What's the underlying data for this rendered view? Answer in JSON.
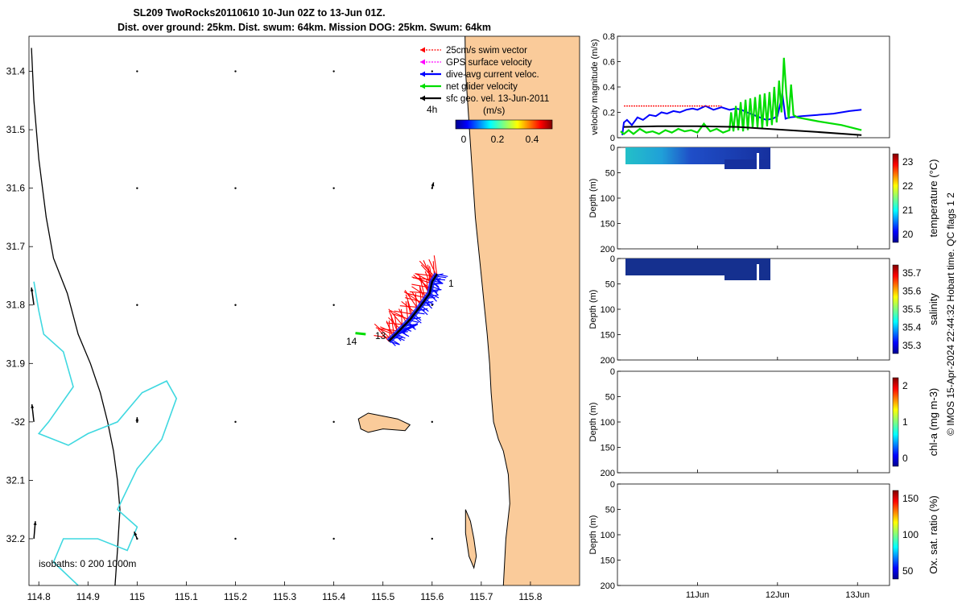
{
  "title": {
    "line1": "SL209 TwoRocks20110610 10-Jun 02Z to 13-Jun 01Z.",
    "line2": "Dist. over ground: 25km. Dist. swum: 64km. Mission DOG: 25km. Swum: 64km"
  },
  "map": {
    "type": "map",
    "xlim": [
      114.78,
      115.9
    ],
    "ylim": [
      -32.28,
      -31.34
    ],
    "xticks": [
      {
        "v": 114.8,
        "label": "114.8"
      },
      {
        "v": 114.9,
        "label": "114.9"
      },
      {
        "v": 115.0,
        "label": "115"
      },
      {
        "v": 115.1,
        "label": "115.1"
      },
      {
        "v": 115.2,
        "label": "115.2"
      },
      {
        "v": 115.3,
        "label": "115.3"
      },
      {
        "v": 115.4,
        "label": "115.4"
      },
      {
        "v": 115.5,
        "label": "115.5"
      },
      {
        "v": 115.6,
        "label": "115.6"
      },
      {
        "v": 115.7,
        "label": "115.7"
      },
      {
        "v": 115.8,
        "label": "115.8"
      }
    ],
    "yticks": [
      {
        "v": -31.4,
        "label": "31.4"
      },
      {
        "v": -31.5,
        "label": "31.5"
      },
      {
        "v": -31.6,
        "label": "31.6"
      },
      {
        "v": -31.7,
        "label": "31.7"
      },
      {
        "v": -31.8,
        "label": "31.8"
      },
      {
        "v": -31.9,
        "label": "31.9"
      },
      {
        "v": -32.0,
        "label": "-32"
      },
      {
        "v": -32.1,
        "label": "32.1"
      },
      {
        "v": -32.2,
        "label": "32.2"
      }
    ],
    "legend": [
      {
        "label": "25cm/s swim vector",
        "color": "#ff0000",
        "dashed": true
      },
      {
        "label": "GPS surface velocity",
        "color": "#ff00ff",
        "dashed": true
      },
      {
        "label": "dive-avg current veloc.",
        "color": "#0000ff",
        "dashed": false
      },
      {
        "label": "net glider velocity",
        "color": "#00dd00",
        "dashed": false
      },
      {
        "label": "sfc geo. vel. 13-Jun-2011",
        "color": "#000000",
        "dashed": false
      }
    ],
    "colorbar": {
      "label_left": "4h",
      "units": "(m/s)",
      "ticks": [
        "0",
        "0.2",
        "0.4"
      ]
    },
    "isobath_text": "isobaths: 0   200  1000m",
    "track_labels": [
      "1",
      "13",
      "14"
    ],
    "coastline": [
      [
        115.667,
        -31.34
      ],
      [
        115.668,
        -31.4
      ],
      [
        115.672,
        -31.45
      ],
      [
        115.676,
        -31.5
      ],
      [
        115.68,
        -31.55
      ],
      [
        115.684,
        -31.6
      ],
      [
        115.688,
        -31.65
      ],
      [
        115.694,
        -31.7
      ],
      [
        115.7,
        -31.75
      ],
      [
        115.706,
        -31.8
      ],
      [
        115.712,
        -31.85
      ],
      [
        115.717,
        -31.9
      ],
      [
        115.72,
        -31.95
      ],
      [
        115.725,
        -32.0
      ],
      [
        115.735,
        -32.03
      ],
      [
        115.745,
        -32.05
      ],
      [
        115.755,
        -32.09
      ],
      [
        115.758,
        -32.14
      ],
      [
        115.75,
        -32.2
      ],
      [
        115.745,
        -32.28
      ]
    ],
    "rottnest": [
      [
        115.45,
        -31.995
      ],
      [
        115.47,
        -31.985
      ],
      [
        115.5,
        -31.99
      ],
      [
        115.53,
        -31.995
      ],
      [
        115.555,
        -32.005
      ],
      [
        115.545,
        -32.015
      ],
      [
        115.5,
        -32.012
      ],
      [
        115.47,
        -32.018
      ],
      [
        115.455,
        -32.012
      ]
    ],
    "garden_island": [
      [
        115.668,
        -32.15
      ],
      [
        115.678,
        -32.17
      ],
      [
        115.685,
        -32.2
      ],
      [
        115.69,
        -32.23
      ],
      [
        115.685,
        -32.25
      ],
      [
        115.675,
        -32.23
      ],
      [
        115.668,
        -32.19
      ]
    ],
    "isobath_200": [
      [
        114.785,
        -31.36
      ],
      [
        114.79,
        -31.45
      ],
      [
        114.8,
        -31.55
      ],
      [
        114.815,
        -31.65
      ],
      [
        114.83,
        -31.72
      ],
      [
        114.858,
        -31.78
      ],
      [
        114.88,
        -31.85
      ],
      [
        114.905,
        -31.9
      ],
      [
        114.925,
        -31.95
      ],
      [
        114.94,
        -32.0
      ],
      [
        114.952,
        -32.05
      ],
      [
        114.96,
        -32.1
      ],
      [
        114.965,
        -32.15
      ],
      [
        114.96,
        -32.22
      ],
      [
        114.955,
        -32.28
      ]
    ],
    "isobath_1000": [
      [
        114.79,
        -31.76
      ],
      [
        114.8,
        -31.81
      ],
      [
        114.81,
        -31.85
      ],
      [
        114.85,
        -31.88
      ],
      [
        114.87,
        -31.94
      ],
      [
        114.82,
        -32.0
      ],
      [
        114.8,
        -32.02
      ],
      [
        114.86,
        -32.04
      ],
      [
        114.9,
        -32.02
      ],
      [
        114.96,
        -32.0
      ],
      [
        115.01,
        -31.95
      ],
      [
        115.06,
        -31.93
      ],
      [
        115.08,
        -31.96
      ],
      [
        115.05,
        -32.03
      ],
      [
        115.0,
        -32.08
      ],
      [
        114.96,
        -32.15
      ],
      [
        115.0,
        -32.18
      ],
      [
        114.98,
        -32.22
      ],
      [
        114.92,
        -32.2
      ],
      [
        114.85,
        -32.2
      ],
      [
        114.83,
        -32.24
      ],
      [
        114.88,
        -32.28
      ]
    ],
    "track": [
      [
        115.512,
        -31.862
      ],
      [
        115.53,
        -31.847
      ],
      [
        115.555,
        -31.825
      ],
      [
        115.578,
        -31.8
      ],
      [
        115.595,
        -31.78
      ],
      [
        115.6,
        -31.76
      ],
      [
        115.61,
        -31.747
      ]
    ],
    "net_velocity_segment": [
      [
        115.444,
        -31.848
      ],
      [
        115.465,
        -31.85
      ]
    ],
    "sfc_vectors": [
      {
        "x": 114.79,
        "y": -31.8,
        "dx": -0.005,
        "dy": 0.03
      },
      {
        "x": 114.79,
        "y": -32.0,
        "dx": -0.004,
        "dy": 0.03
      },
      {
        "x": 114.79,
        "y": -32.2,
        "dx": 0.003,
        "dy": 0.03
      },
      {
        "x": 115.0,
        "y": -32.2,
        "dx": -0.006,
        "dy": 0.012
      },
      {
        "x": 115.0,
        "y": -32.0,
        "dx": 0.0,
        "dy": 0.008
      },
      {
        "x": 115.6,
        "y": -31.6,
        "dx": 0.003,
        "dy": 0.01
      }
    ]
  },
  "panels": [
    {
      "name": "velocity-panel",
      "ylabel": "velocity magnitude (m/s)",
      "yticks": [
        "0.8",
        "0.6",
        "0.4",
        "0.2",
        "0"
      ],
      "chart_data": {
        "type": "line",
        "xlim": [
          10.0,
          13.4
        ],
        "ylim": [
          0,
          0.8
        ],
        "series": [
          {
            "name": "dive-avg current veloc.",
            "color": "#0000ff",
            "x": [
              10.06,
              10.08,
              10.12,
              10.18,
              10.25,
              10.32,
              10.4,
              10.48,
              10.55,
              10.62,
              10.7,
              10.78,
              10.86,
              10.94,
              11.0,
              11.1,
              11.2,
              11.3,
              11.4,
              11.48,
              11.55,
              11.62,
              11.7,
              11.78,
              11.86,
              11.94,
              12.0,
              12.04,
              12.06,
              12.08,
              12.1,
              12.15,
              12.3,
              12.5,
              12.7,
              12.9,
              13.05
            ],
            "y": [
              0.02,
              0.12,
              0.14,
              0.1,
              0.16,
              0.14,
              0.18,
              0.17,
              0.2,
              0.19,
              0.21,
              0.2,
              0.22,
              0.23,
              0.22,
              0.25,
              0.22,
              0.24,
              0.22,
              0.23,
              0.22,
              0.2,
              0.18,
              0.16,
              0.14,
              0.15,
              0.17,
              0.28,
              0.35,
              0.25,
              0.15,
              0.16,
              0.17,
              0.18,
              0.19,
              0.21,
              0.22
            ]
          },
          {
            "name": "net glider velocity",
            "color": "#00dd00",
            "x": [
              10.04,
              10.08,
              10.14,
              10.2,
              10.28,
              10.36,
              10.44,
              10.52,
              10.6,
              10.68,
              10.76,
              10.84,
              10.92,
              11.0,
              11.08,
              11.16,
              11.24,
              11.32,
              11.4,
              11.42,
              11.45,
              11.48,
              11.51,
              11.54,
              11.57,
              11.6,
              11.63,
              11.66,
              11.69,
              11.72,
              11.75,
              11.78,
              11.81,
              11.84,
              11.87,
              11.9,
              11.93,
              11.96,
              11.99,
              12.02,
              12.05,
              12.08,
              12.11,
              12.14,
              12.17,
              12.2,
              12.25,
              12.5,
              12.8,
              13.05
            ],
            "y": [
              0.05,
              0.03,
              0.06,
              0.03,
              0.07,
              0.04,
              0.05,
              0.03,
              0.06,
              0.04,
              0.07,
              0.05,
              0.06,
              0.04,
              0.11,
              0.05,
              0.07,
              0.04,
              0.06,
              0.2,
              0.05,
              0.25,
              0.06,
              0.28,
              0.05,
              0.3,
              0.06,
              0.31,
              0.08,
              0.32,
              0.08,
              0.34,
              0.07,
              0.35,
              0.09,
              0.36,
              0.1,
              0.4,
              0.12,
              0.45,
              0.2,
              0.63,
              0.35,
              0.15,
              0.42,
              0.18,
              0.16,
              0.13,
              0.1,
              0.06
            ]
          },
          {
            "name": "sfc geo. vel.",
            "color": "#000000",
            "x": [
              10.08,
              10.5,
              11.0,
              11.5,
              12.0,
              12.5,
              13.05
            ],
            "y": [
              0.085,
              0.09,
              0.09,
              0.085,
              0.065,
              0.045,
              0.02
            ]
          },
          {
            "name": "swim vector reference",
            "color": "#ff0000",
            "dashed": true,
            "x": [
              10.08,
              11.3
            ],
            "y": [
              0.25,
              0.25
            ]
          }
        ]
      }
    },
    {
      "name": "temperature-panel",
      "ylabel": "Depth (m)",
      "yticks": [
        "0",
        "50",
        "100",
        "150",
        "200"
      ],
      "colorbar": {
        "label": "temperature (°C)",
        "ticks": [
          "23",
          "22",
          "21",
          "20"
        ]
      }
    },
    {
      "name": "salinity-panel",
      "ylabel": "Depth (m)",
      "yticks": [
        "0",
        "50",
        "100",
        "150",
        "200"
      ],
      "colorbar": {
        "label": "salinity",
        "ticks": [
          "35.7",
          "35.6",
          "35.5",
          "35.4",
          "35.3"
        ]
      }
    },
    {
      "name": "chla-panel",
      "ylabel": "Depth (m)",
      "yticks": [
        "0",
        "50",
        "100",
        "150",
        "200"
      ],
      "colorbar": {
        "label": "chl-a (mg m-3)",
        "ticks": [
          "2",
          "1",
          "0"
        ]
      }
    },
    {
      "name": "oxygen-panel",
      "ylabel": "Depth (m)",
      "yticks": [
        "0",
        "50",
        "100",
        "150",
        "200"
      ],
      "colorbar": {
        "label": "Ox. sat. ratio (%)",
        "ticks": [
          "150",
          "100",
          "50"
        ]
      }
    }
  ],
  "time_axis": {
    "ticks": [
      {
        "v": 11.0,
        "label": "11Jun"
      },
      {
        "v": 12.0,
        "label": "12Jun"
      },
      {
        "v": 13.0,
        "label": "13Jun"
      }
    ]
  },
  "credit": "© IMOS 15-Apr-2024 22:44:32 Hobart time. QC flags 1  2"
}
